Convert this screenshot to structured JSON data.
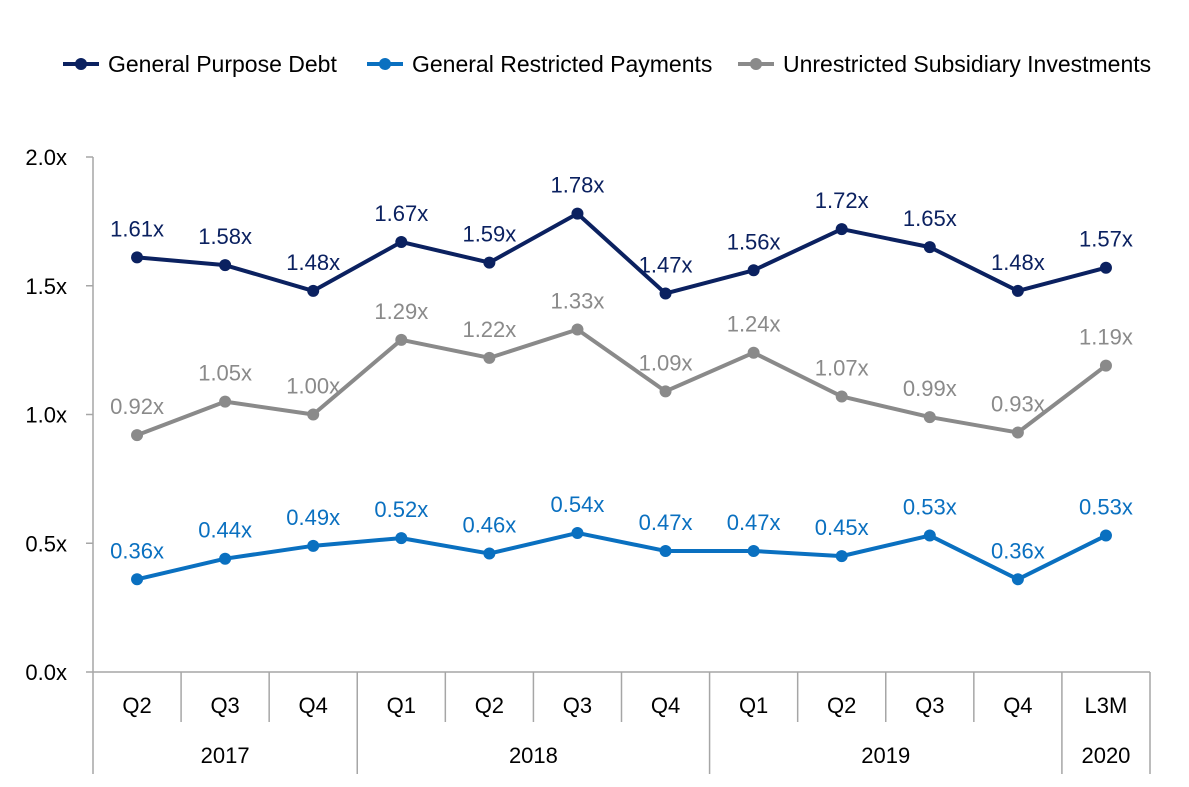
{
  "chart_data": {
    "type": "line",
    "title": "",
    "xlabel": "",
    "ylabel": "",
    "ylim": [
      0,
      2.0
    ],
    "yticks": [
      "0.0x",
      "0.5x",
      "1.0x",
      "1.5x",
      "2.0x"
    ],
    "ytick_values": [
      0,
      0.5,
      1.0,
      1.5,
      2.0
    ],
    "grid": false,
    "legend_position": "top",
    "categories": [
      "Q2",
      "Q3",
      "Q4",
      "Q1",
      "Q2",
      "Q3",
      "Q4",
      "Q1",
      "Q2",
      "Q3",
      "Q4",
      "L3M"
    ],
    "year_groups": [
      {
        "label": "2017",
        "count": 3
      },
      {
        "label": "2018",
        "count": 4
      },
      {
        "label": "2019",
        "count": 4
      },
      {
        "label": "2020",
        "count": 1
      }
    ],
    "series": [
      {
        "name": "General Purpose Debt",
        "color": "#0b2160",
        "values": [
          1.61,
          1.58,
          1.48,
          1.67,
          1.59,
          1.78,
          1.47,
          1.56,
          1.72,
          1.65,
          1.48,
          1.57
        ],
        "labels": [
          "1.61x",
          "1.58x",
          "1.48x",
          "1.67x",
          "1.59x",
          "1.78x",
          "1.47x",
          "1.56x",
          "1.72x",
          "1.65x",
          "1.48x",
          "1.57x"
        ]
      },
      {
        "name": "General Restricted Payments",
        "color": "#0a70c0",
        "values": [
          0.36,
          0.44,
          0.49,
          0.52,
          0.46,
          0.54,
          0.47,
          0.47,
          0.45,
          0.53,
          0.36,
          0.53
        ],
        "labels": [
          "0.36x",
          "0.44x",
          "0.49x",
          "0.52x",
          "0.46x",
          "0.54x",
          "0.47x",
          "0.47x",
          "0.45x",
          "0.53x",
          "0.36x",
          "0.53x"
        ]
      },
      {
        "name": "Unrestricted Subsidiary Investments",
        "color": "#8a8a8a",
        "values": [
          0.92,
          1.05,
          1.0,
          1.29,
          1.22,
          1.33,
          1.09,
          1.24,
          1.07,
          0.99,
          0.93,
          1.19
        ],
        "labels": [
          "0.92x",
          "1.05x",
          "1.00x",
          "1.29x",
          "1.22x",
          "1.33x",
          "1.09x",
          "1.24x",
          "1.07x",
          "0.99x",
          "0.93x",
          "1.19x"
        ]
      }
    ]
  }
}
